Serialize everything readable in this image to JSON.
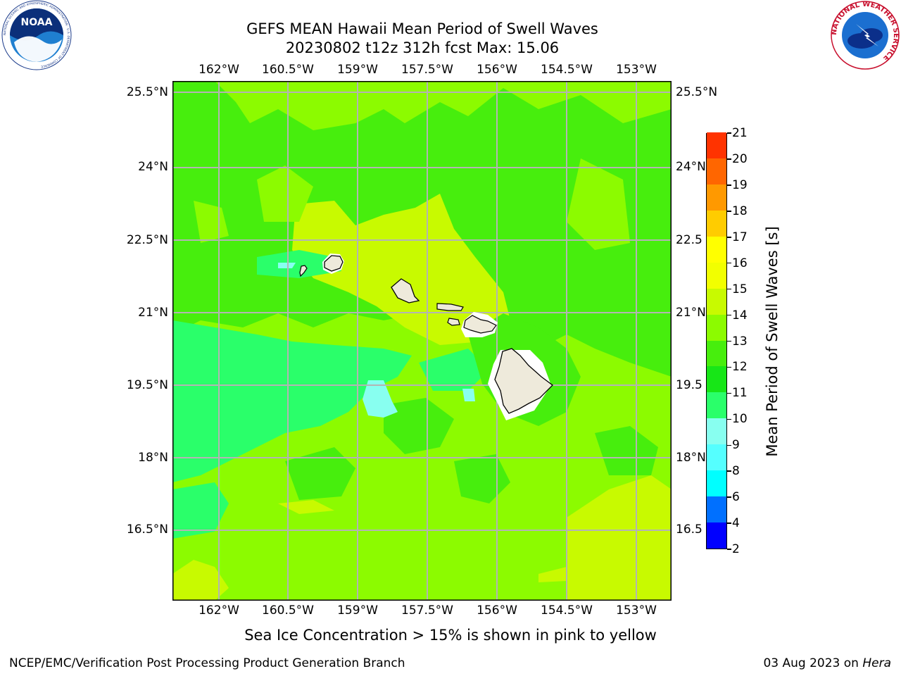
{
  "title": {
    "line1": "GEFS MEAN Hawaii Mean Period of Swell Waves",
    "line2": "20230802 t12z 312h fcst   Max: 15.06"
  },
  "lon_labels": [
    "162°W",
    "160.5°W",
    "159°W",
    "157.5°W",
    "156°W",
    "154.5°W",
    "153°W"
  ],
  "lat_labels": [
    "25.5°N",
    "24°N",
    "22.5°N",
    "21°N",
    "19.5°N",
    "18°N",
    "16.5°N"
  ],
  "lat_labels_right": [
    "25.5°N",
    "24°N",
    "22.5",
    "21°N",
    "19.5",
    "18°N",
    "16.5"
  ],
  "colorbar": {
    "label": "Mean Period of Swell Waves [s]",
    "ticks": [
      "2",
      "4",
      "6",
      "8",
      "9",
      "10",
      "11",
      "12",
      "13",
      "14",
      "15",
      "16",
      "17",
      "18",
      "19",
      "20",
      "21"
    ],
    "colors": [
      "#0000ff",
      "#0070ff",
      "#00ffff",
      "#55ffff",
      "#88fff0",
      "#2aff6a",
      "#17e617",
      "#47ee0d",
      "#8cfb00",
      "#c8fa00",
      "#f2ff00",
      "#ffff00",
      "#ffcc00",
      "#ff9900",
      "#ff6600",
      "#ff3300",
      "#ff0000"
    ]
  },
  "note": "Sea Ice Concentration > 15% is shown in pink to yellow",
  "footer": {
    "left": "NCEP/EMC/Verification Post Processing Product Generation Branch",
    "right_date": "03 Aug 2023 on ",
    "right_host": "Hera"
  },
  "logos": {
    "noaa_text": "NOAA",
    "noaa_ring": "NATIONAL OCEANIC AND ATMOSPHERIC ADMINISTRATION · U.S. DEPARTMENT OF COMMERCE",
    "nws_ring": "NATIONAL WEATHER SERVICE"
  }
}
